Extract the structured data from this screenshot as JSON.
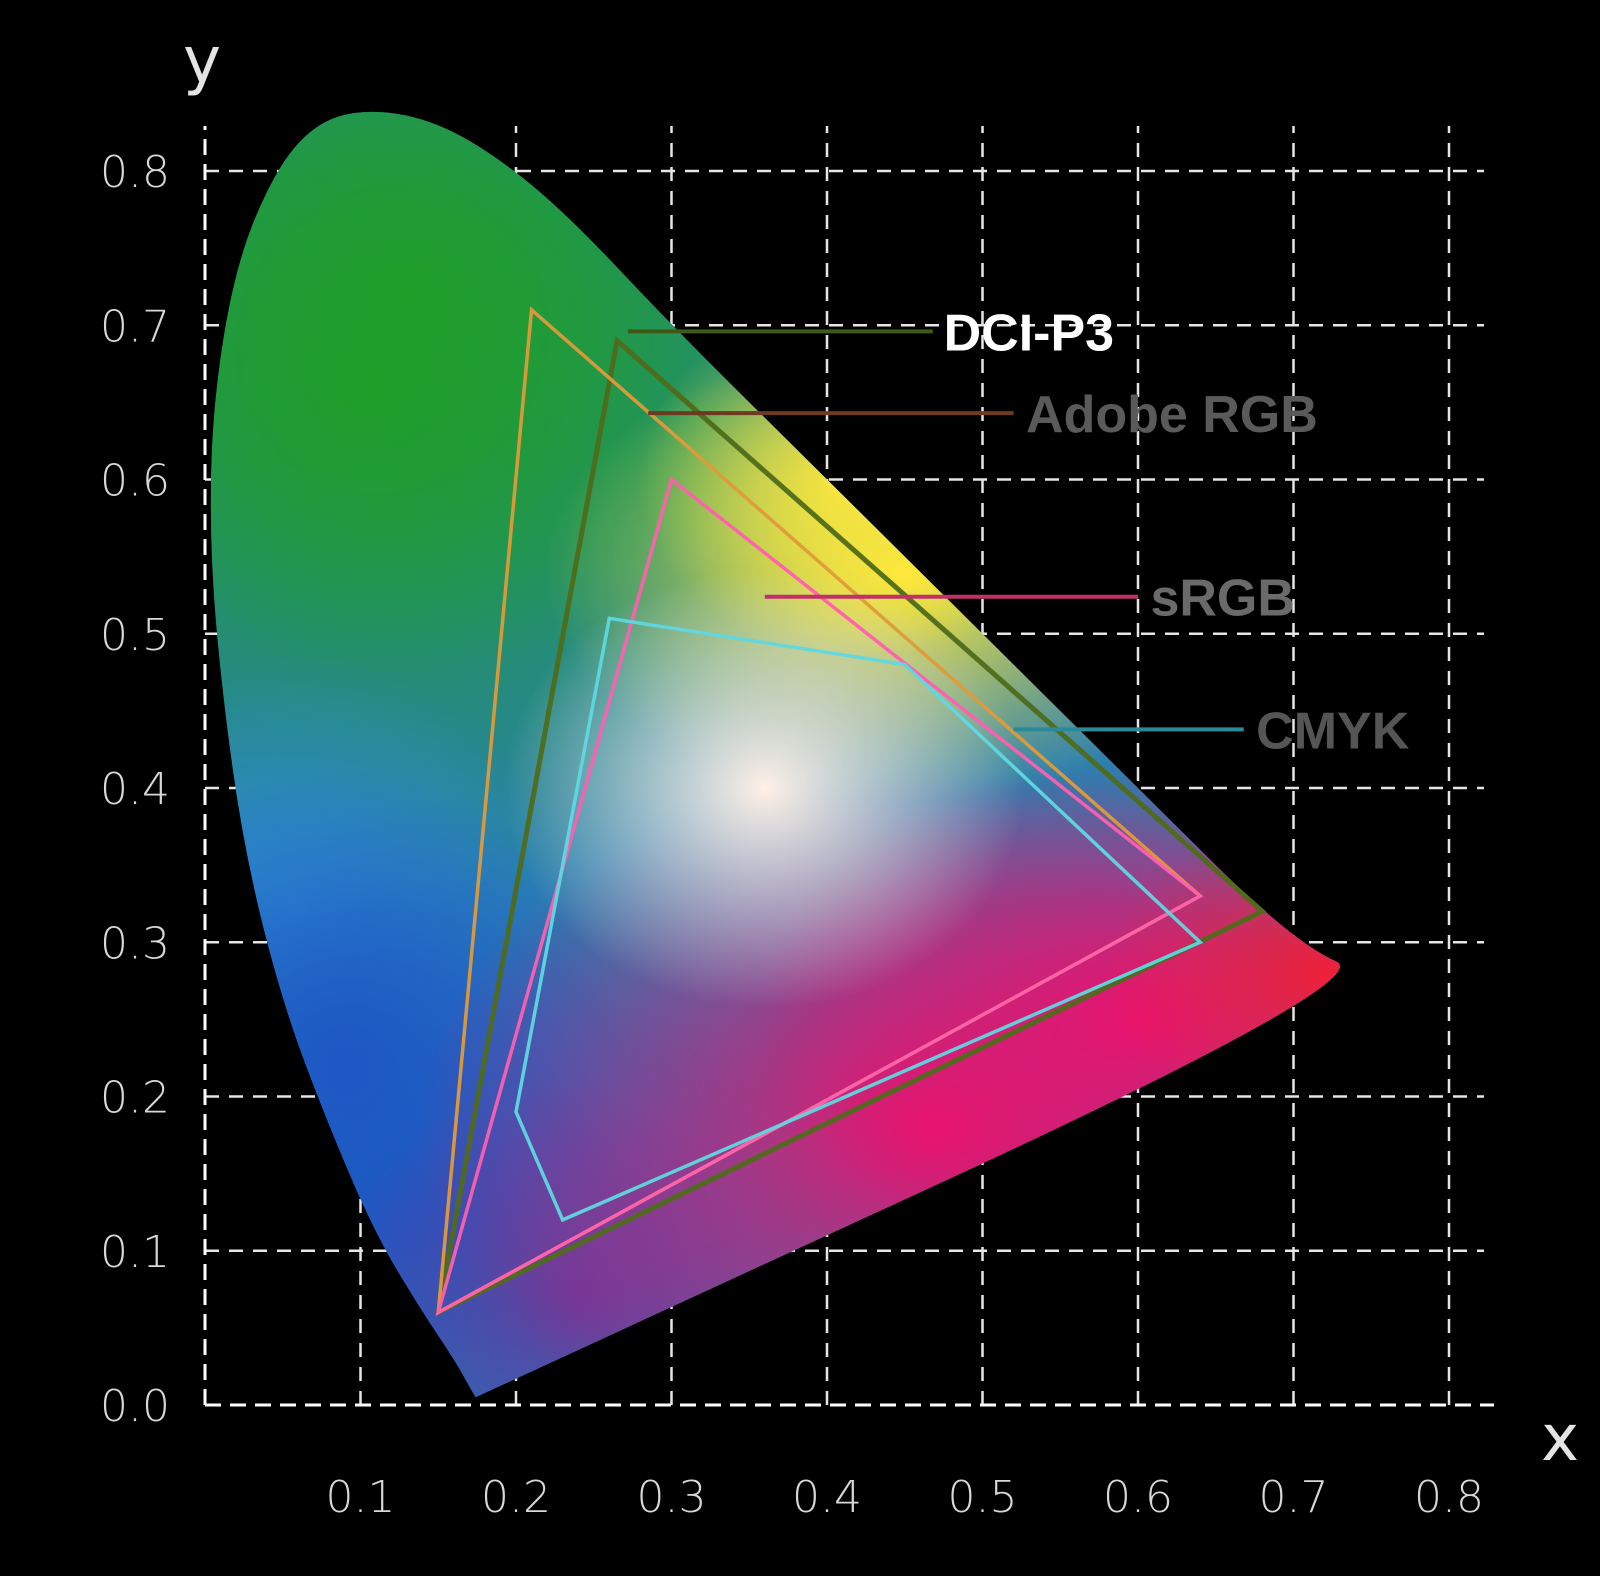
{
  "chart_data": {
    "type": "scatter",
    "xlabel": "x",
    "ylabel": "y",
    "xlim": [
      0,
      0.83
    ],
    "ylim": [
      0,
      0.83
    ],
    "x_ticks": [
      "0.1",
      "0.2",
      "0.3",
      "0.4",
      "0.5",
      "0.6",
      "0.7",
      "0.8"
    ],
    "y_ticks": [
      "0.0",
      "0.1",
      "0.2",
      "0.3",
      "0.4",
      "0.5",
      "0.6",
      "0.7",
      "0.8"
    ],
    "grid": true,
    "spectral_locus": [
      [
        0.174,
        0.005
      ],
      [
        0.17,
        0.012
      ],
      [
        0.16,
        0.03
      ],
      [
        0.14,
        0.06
      ],
      [
        0.11,
        0.11
      ],
      [
        0.08,
        0.18
      ],
      [
        0.05,
        0.26
      ],
      [
        0.025,
        0.36
      ],
      [
        0.01,
        0.47
      ],
      [
        0.003,
        0.56
      ],
      [
        0.005,
        0.65
      ],
      [
        0.02,
        0.74
      ],
      [
        0.045,
        0.8
      ],
      [
        0.07,
        0.83
      ],
      [
        0.1,
        0.84
      ],
      [
        0.14,
        0.835
      ],
      [
        0.18,
        0.815
      ],
      [
        0.23,
        0.775
      ],
      [
        0.3,
        0.7
      ],
      [
        0.4,
        0.6
      ],
      [
        0.5,
        0.5
      ],
      [
        0.6,
        0.4
      ],
      [
        0.7,
        0.3
      ],
      [
        0.755,
        0.275
      ],
      [
        0.174,
        0.005
      ]
    ],
    "series": [
      {
        "name": "DCI-P3",
        "color": "#4f6b1a",
        "points": [
          [
            0.68,
            0.32
          ],
          [
            0.265,
            0.69
          ],
          [
            0.15,
            0.06
          ]
        ]
      },
      {
        "name": "Adobe RGB",
        "color": "#e09a3a",
        "points": [
          [
            0.64,
            0.33
          ],
          [
            0.21,
            0.71
          ],
          [
            0.15,
            0.06
          ]
        ]
      },
      {
        "name": "sRGB",
        "color": "#ff5fb0",
        "points": [
          [
            0.64,
            0.33
          ],
          [
            0.3,
            0.6
          ],
          [
            0.15,
            0.06
          ]
        ]
      },
      {
        "name": "CMYK",
        "color": "#5fd8e0",
        "points": [
          [
            0.64,
            0.3
          ],
          [
            0.45,
            0.48
          ],
          [
            0.26,
            0.51
          ],
          [
            0.2,
            0.19
          ],
          [
            0.23,
            0.12
          ]
        ]
      }
    ],
    "legend": [
      {
        "label": "DCI-P3",
        "color": "#ffffff",
        "line_color": "#3f5a14"
      },
      {
        "label": "Adobe RGB",
        "color": "#5a5a5a",
        "line_color": "#6b3a20"
      },
      {
        "label": "sRGB",
        "color": "#6a6a6a",
        "line_color": "#c0306a"
      },
      {
        "label": "CMYK",
        "color": "#555555",
        "line_color": "#2a8a9a"
      }
    ],
    "legend_placement": "right"
  }
}
